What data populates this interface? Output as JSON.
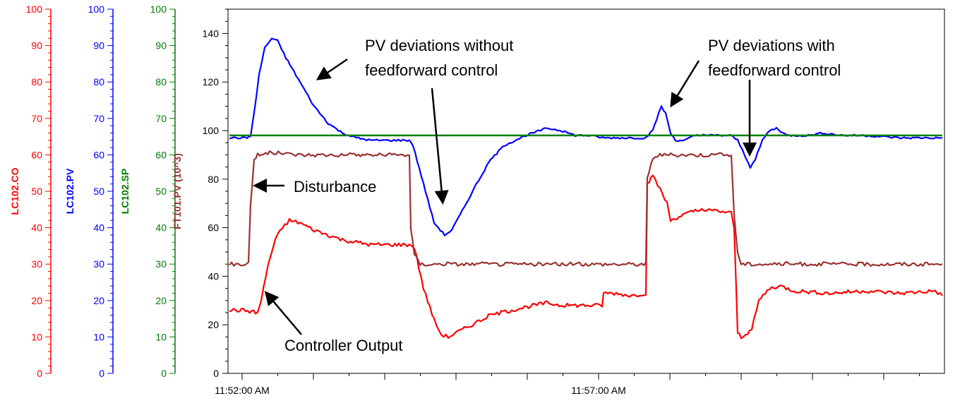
{
  "chart_data": {
    "type": "line",
    "title": "",
    "x_ticks": [
      "11:52:00 AM",
      "11:57:00 AM"
    ],
    "x_range": [
      "11:51:48 AM",
      "12:01:48 PM"
    ],
    "grid": false,
    "axes": [
      {
        "name": "LC102.CO",
        "color": "#ff0000",
        "range": [
          0,
          100
        ],
        "ticks": [
          0,
          10,
          20,
          30,
          40,
          50,
          60,
          70,
          80,
          90,
          100
        ]
      },
      {
        "name": "LC102.PV",
        "color": "#0000ff",
        "range": [
          0,
          100
        ],
        "ticks": [
          0,
          10,
          20,
          30,
          40,
          50,
          60,
          70,
          80,
          90,
          100
        ]
      },
      {
        "name": "LC102.SP",
        "color": "#008000",
        "range": [
          0,
          100
        ],
        "ticks": [
          0,
          10,
          20,
          30,
          40,
          50,
          60,
          70,
          80,
          90,
          100
        ]
      },
      {
        "name": "FT101.PV (10^3)",
        "color": "#993333",
        "range": [
          0,
          150
        ],
        "ticks": [
          0,
          20,
          40,
          60,
          80,
          100,
          120,
          140
        ]
      }
    ],
    "series": [
      {
        "name": "LC102.CO",
        "color": "#ff0000",
        "axis": "FT101.PV (10^3)",
        "points": [
          [
            0,
            26
          ],
          [
            20,
            26
          ],
          [
            40,
            25
          ],
          [
            45,
            30
          ],
          [
            55,
            45
          ],
          [
            65,
            55
          ],
          [
            75,
            60
          ],
          [
            85,
            63
          ],
          [
            100,
            62
          ],
          [
            120,
            59
          ],
          [
            140,
            57
          ],
          [
            160,
            55
          ],
          [
            180,
            54
          ],
          [
            200,
            53
          ],
          [
            220,
            53
          ],
          [
            240,
            53
          ],
          [
            255,
            53
          ],
          [
            262,
            52
          ],
          [
            275,
            35
          ],
          [
            290,
            22
          ],
          [
            300,
            16
          ],
          [
            310,
            15
          ],
          [
            330,
            18
          ],
          [
            350,
            21
          ],
          [
            370,
            24
          ],
          [
            400,
            26
          ],
          [
            430,
            28
          ],
          [
            450,
            29
          ],
          [
            470,
            28
          ],
          [
            490,
            28
          ],
          [
            510,
            28
          ],
          [
            528,
            28
          ],
          [
            530,
            33
          ],
          [
            545,
            33
          ],
          [
            570,
            32
          ],
          [
            590,
            33
          ],
          [
            592,
            78
          ],
          [
            600,
            81
          ],
          [
            610,
            76
          ],
          [
            620,
            70
          ],
          [
            625,
            63
          ],
          [
            640,
            65
          ],
          [
            660,
            67
          ],
          [
            690,
            67
          ],
          [
            711,
            66
          ],
          [
            715,
            60
          ],
          [
            720,
            17
          ],
          [
            725,
            15
          ],
          [
            740,
            18
          ],
          [
            750,
            30
          ],
          [
            765,
            35
          ],
          [
            780,
            36
          ],
          [
            800,
            34
          ],
          [
            850,
            33
          ],
          [
            900,
            34
          ],
          [
            950,
            33
          ],
          [
            1000,
            34
          ],
          [
            1010,
            32
          ]
        ]
      },
      {
        "name": "FT101.PV (10^3)",
        "color": "#993333",
        "axis": "FT101.PV (10^3)",
        "points": [
          [
            0,
            45
          ],
          [
            25,
            45
          ],
          [
            27,
            46
          ],
          [
            30,
            70
          ],
          [
            35,
            88
          ],
          [
            40,
            90
          ],
          [
            60,
            91
          ],
          [
            100,
            90
          ],
          [
            140,
            90
          ],
          [
            180,
            90
          ],
          [
            230,
            90
          ],
          [
            255,
            90
          ],
          [
            257,
            60
          ],
          [
            262,
            49
          ],
          [
            270,
            45
          ],
          [
            300,
            45
          ],
          [
            350,
            45
          ],
          [
            400,
            45
          ],
          [
            450,
            45
          ],
          [
            520,
            45
          ],
          [
            590,
            45
          ],
          [
            592,
            80
          ],
          [
            600,
            89
          ],
          [
            610,
            90
          ],
          [
            650,
            90
          ],
          [
            700,
            90
          ],
          [
            711,
            90
          ],
          [
            715,
            65
          ],
          [
            720,
            50
          ],
          [
            725,
            45
          ],
          [
            760,
            45
          ],
          [
            800,
            45
          ],
          [
            850,
            45
          ],
          [
            900,
            45
          ],
          [
            950,
            45
          ],
          [
            1000,
            45
          ],
          [
            1010,
            45
          ]
        ]
      },
      {
        "name": "LC102.PV",
        "color": "#0000ff",
        "axis": "FT101.PV (10^3)",
        "points": [
          [
            0,
            97
          ],
          [
            25,
            97
          ],
          [
            30,
            98
          ],
          [
            35,
            107
          ],
          [
            42,
            123
          ],
          [
            50,
            134
          ],
          [
            60,
            138
          ],
          [
            68,
            137
          ],
          [
            80,
            130
          ],
          [
            100,
            120
          ],
          [
            120,
            110
          ],
          [
            140,
            103
          ],
          [
            160,
            99
          ],
          [
            180,
            97
          ],
          [
            200,
            96
          ],
          [
            230,
            96
          ],
          [
            255,
            96
          ],
          [
            260,
            94
          ],
          [
            275,
            78
          ],
          [
            290,
            62
          ],
          [
            305,
            57
          ],
          [
            315,
            59
          ],
          [
            330,
            67
          ],
          [
            350,
            78
          ],
          [
            370,
            88
          ],
          [
            390,
            94
          ],
          [
            420,
            98
          ],
          [
            450,
            101
          ],
          [
            470,
            100
          ],
          [
            490,
            98
          ],
          [
            510,
            98
          ],
          [
            530,
            97
          ],
          [
            550,
            97
          ],
          [
            590,
            97
          ],
          [
            600,
            100
          ],
          [
            608,
            107
          ],
          [
            612,
            110
          ],
          [
            618,
            107
          ],
          [
            625,
            99
          ],
          [
            632,
            96
          ],
          [
            645,
            96
          ],
          [
            660,
            98
          ],
          [
            690,
            98
          ],
          [
            710,
            98
          ],
          [
            720,
            96
          ],
          [
            730,
            90
          ],
          [
            738,
            85
          ],
          [
            745,
            88
          ],
          [
            755,
            96
          ],
          [
            765,
            100
          ],
          [
            775,
            101
          ],
          [
            790,
            98
          ],
          [
            820,
            98
          ],
          [
            840,
            99
          ],
          [
            870,
            98
          ],
          [
            900,
            98
          ],
          [
            950,
            97
          ],
          [
            1010,
            97
          ]
        ]
      },
      {
        "name": "LC102.SP",
        "color": "#008000",
        "axis": "FT101.PV (10^3)",
        "points": [
          [
            0,
            98
          ],
          [
            1010,
            98
          ]
        ]
      }
    ],
    "annotations": [
      {
        "lines": [
          "PV deviations without",
          "feedforward control"
        ]
      },
      {
        "lines": [
          "PV deviations with",
          "feedforward control"
        ]
      },
      {
        "lines": [
          "Disturbance"
        ]
      },
      {
        "lines": [
          "Controller Output"
        ]
      }
    ]
  }
}
